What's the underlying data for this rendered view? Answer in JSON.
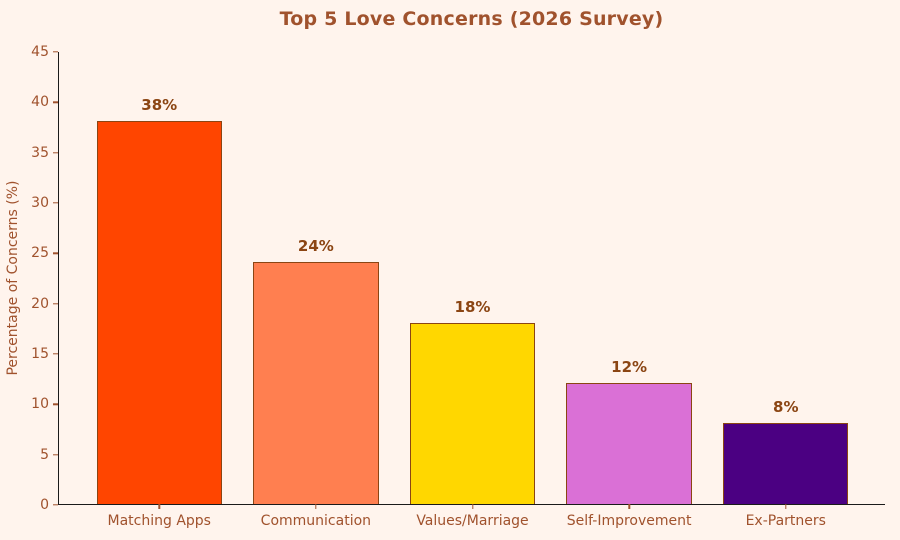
{
  "chart_data": {
    "type": "bar",
    "title": "Top 5 Love Concerns (2026 Survey)",
    "xlabel": "",
    "ylabel": "Percentage of Concerns (%)",
    "categories": [
      "Matching Apps",
      "Communication",
      "Values/Marriage",
      "Self-Improvement",
      "Ex-Partners"
    ],
    "values": [
      38,
      24,
      18,
      12,
      8
    ],
    "value_labels": [
      "38%",
      "24%",
      "18%",
      "12%",
      "8%"
    ],
    "bar_colors": [
      "#FF4500",
      "#FF7F50",
      "#FFD700",
      "#DA70D6",
      "#4B0082"
    ],
    "bar_edge_color": "#8B4513",
    "ylim": [
      0,
      45
    ],
    "yticks": [
      0,
      5,
      10,
      15,
      20,
      25,
      30,
      35,
      40,
      45
    ],
    "grid": false,
    "legend": "none",
    "bar_width_fraction": 0.8,
    "background_color": "#FFF4ED",
    "title_color": "#A0522D",
    "tick_label_color": "#A0522D",
    "value_label_color": "#8B4513",
    "axis_color": "#1a1a1a"
  }
}
